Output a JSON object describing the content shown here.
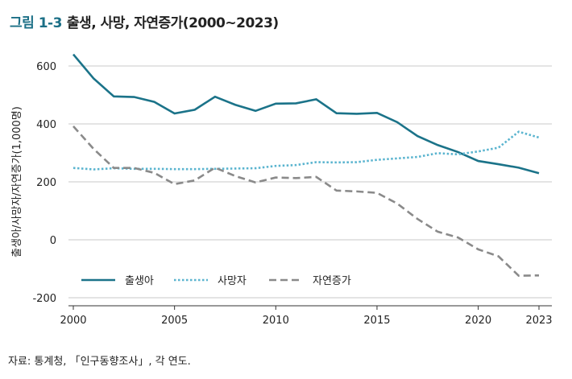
{
  "title": {
    "figure_number": "그림 1-3",
    "text": "출생, 사망, 자연증가(2000~2023)"
  },
  "source": "자료: 통계청, 「인구동향조사」, 각 연도.",
  "chart_data": {
    "type": "line",
    "title": "출생, 사망, 자연증가(2000~2023)",
    "xlabel": "",
    "ylabel": "출생아/사망자/자연증가(1,000명)",
    "xlim": [
      2000,
      2023
    ],
    "ylim": [
      -200,
      600
    ],
    "xticks": [
      2000,
      2005,
      2010,
      2015,
      2020,
      2023
    ],
    "yticks": [
      -200,
      0,
      200,
      400,
      600
    ],
    "grid": "horizontal",
    "legend_position": "bottom-left",
    "x": [
      2000,
      2001,
      2002,
      2003,
      2004,
      2005,
      2006,
      2007,
      2008,
      2009,
      2010,
      2011,
      2012,
      2013,
      2014,
      2015,
      2016,
      2017,
      2018,
      2019,
      2020,
      2021,
      2022,
      2023
    ],
    "series": [
      {
        "name": "출생아",
        "style": "solid",
        "color": "#1b7389",
        "values": [
          640,
          557,
          495,
          493,
          476,
          436,
          449,
          494,
          466,
          445,
          470,
          471,
          485,
          437,
          435,
          438,
          406,
          358,
          327,
          303,
          272,
          261,
          249,
          230
        ]
      },
      {
        "name": "사망자",
        "style": "dotted",
        "color": "#5ab4cf",
        "values": [
          248,
          243,
          247,
          245,
          245,
          244,
          244,
          245,
          246,
          247,
          255,
          258,
          268,
          267,
          268,
          276,
          281,
          286,
          299,
          295,
          305,
          318,
          373,
          353
        ]
      },
      {
        "name": "자연증가",
        "style": "dashed",
        "color": "#8a8a8a",
        "values": [
          392,
          314,
          248,
          248,
          231,
          192,
          205,
          249,
          220,
          198,
          215,
          213,
          217,
          170,
          167,
          162,
          125,
          72,
          28,
          8,
          -33,
          -57,
          -124,
          -123
        ]
      }
    ]
  }
}
